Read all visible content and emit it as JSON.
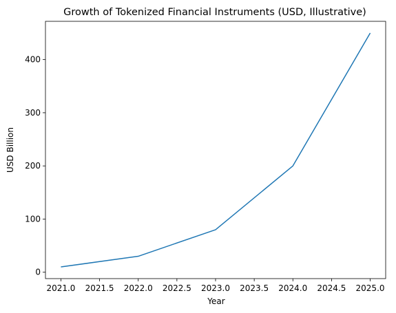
{
  "chart_data": {
    "type": "line",
    "title": "Growth of Tokenized Financial Instruments (USD, Illustrative)",
    "xlabel": "Year",
    "ylabel": "USD Billion",
    "xlim": [
      2020.8,
      2025.2
    ],
    "ylim": [
      -12,
      472
    ],
    "x_ticks": [
      "2021.0",
      "2021.5",
      "2022.0",
      "2022.5",
      "2023.0",
      "2023.5",
      "2024.0",
      "2024.5",
      "2025.0"
    ],
    "y_ticks": [
      "0",
      "100",
      "200",
      "300",
      "400"
    ],
    "grid": false,
    "legend": "none",
    "series": [
      {
        "color": "#1f77b4",
        "x": [
          2021,
          2022,
          2023,
          2024,
          2025
        ],
        "y": [
          10,
          30,
          80,
          200,
          450
        ]
      }
    ]
  }
}
